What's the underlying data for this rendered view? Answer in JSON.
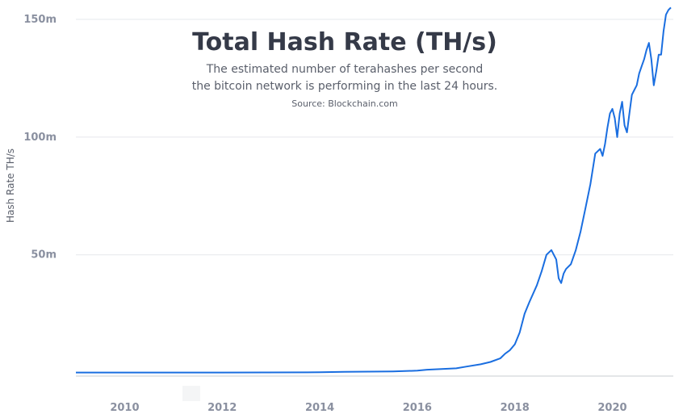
{
  "chart_data": {
    "type": "line",
    "title": "Total Hash Rate (TH/s)",
    "subtitle_lines": [
      "The estimated number of terahashes per second",
      "the bitcoin network is performing in the last 24 hours."
    ],
    "source": "Source: Blockchain.com",
    "ylabel": "Hash Rate TH/s",
    "xlabel": "",
    "xlim": [
      2009.0,
      2021.25
    ],
    "ylim": [
      -1.5,
      150
    ],
    "x_ticks": [
      2010,
      2012,
      2014,
      2016,
      2018,
      2020
    ],
    "x_tick_labels": [
      "2010",
      "2012",
      "2014",
      "2016",
      "2018",
      "2020"
    ],
    "y_ticks": [
      50,
      100,
      150
    ],
    "y_tick_labels": [
      "50m",
      "100m",
      "150m"
    ],
    "grid": true,
    "line_color": "#1a6ee0",
    "series": [
      {
        "x": [
          2009.0,
          2010.0,
          2012.0,
          2014.0,
          2014.5,
          2015.0,
          2015.5,
          2016.0,
          2016.2,
          2016.5,
          2016.8,
          2017.0,
          2017.3,
          2017.5,
          2017.7,
          2017.8,
          2017.9,
          2018.0,
          2018.1,
          2018.2,
          2018.3,
          2018.45,
          2018.55,
          2018.65,
          2018.75,
          2018.85,
          2018.9,
          2018.95,
          2019.0,
          2019.05,
          2019.15,
          2019.25,
          2019.35,
          2019.45,
          2019.55,
          2019.65,
          2019.75,
          2019.8,
          2019.85,
          2019.9,
          2019.95,
          2020.0,
          2020.05,
          2020.1,
          2020.15,
          2020.2,
          2020.25,
          2020.3,
          2020.35,
          2020.4,
          2020.45,
          2020.5,
          2020.55,
          2020.6,
          2020.65,
          2020.7,
          2020.75,
          2020.8,
          2020.85,
          2020.9,
          2020.95,
          2021.0,
          2021.05,
          2021.1,
          2021.15,
          2021.2
        ],
        "y": [
          0,
          0,
          0,
          0.1,
          0.3,
          0.4,
          0.5,
          0.8,
          1.2,
          1.5,
          1.8,
          2.5,
          3.5,
          4.5,
          6,
          8,
          9.5,
          12,
          17,
          25,
          30,
          37,
          43,
          50,
          52,
          48,
          40,
          38,
          42,
          44,
          46,
          52,
          60,
          70,
          80,
          93,
          95,
          92,
          97,
          104,
          110,
          112,
          108,
          100,
          110,
          115,
          105,
          102,
          110,
          118,
          120,
          122,
          127,
          130,
          133,
          137,
          140,
          133,
          122,
          128,
          135,
          135,
          145,
          152,
          154,
          155
        ]
      }
    ]
  }
}
